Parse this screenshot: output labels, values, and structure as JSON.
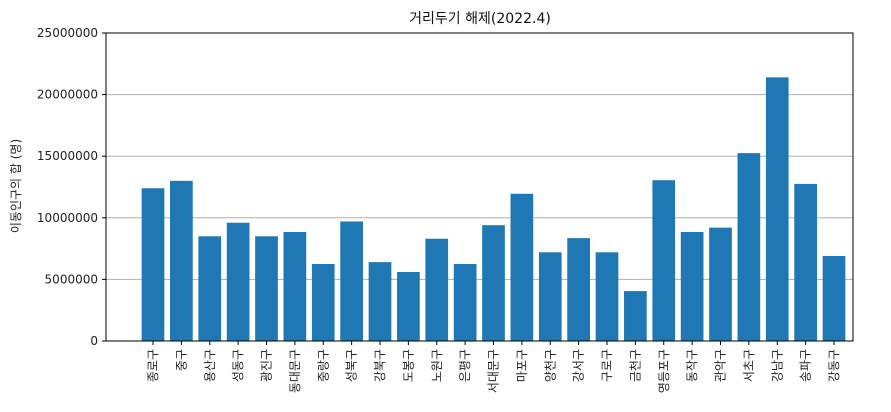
{
  "chart_data": {
    "type": "bar",
    "title": "거리두기 해제(2022.4)",
    "xlabel": "",
    "ylabel": "이동인구의 합 (명)",
    "categories": [
      "종로구",
      "중구",
      "용산구",
      "성동구",
      "광진구",
      "동대문구",
      "중랑구",
      "성북구",
      "강북구",
      "도봉구",
      "노원구",
      "은평구",
      "서대문구",
      "마포구",
      "양천구",
      "강서구",
      "구로구",
      "금천구",
      "영등포구",
      "동작구",
      "관악구",
      "서초구",
      "강남구",
      "송파구",
      "강동구"
    ],
    "values": [
      12400000,
      13000000,
      8500000,
      9600000,
      8500000,
      8850000,
      6250000,
      9700000,
      6400000,
      5600000,
      8300000,
      6250000,
      9400000,
      11950000,
      7200000,
      8350000,
      7200000,
      4050000,
      13050000,
      8850000,
      9200000,
      15250000,
      21400000,
      12750000,
      6900000
    ],
    "yticks": [
      0,
      5000000,
      10000000,
      15000000,
      20000000,
      25000000
    ],
    "ylim": [
      0,
      25000000
    ],
    "grid": "horizontal",
    "bar_color": "#1f77b4"
  }
}
